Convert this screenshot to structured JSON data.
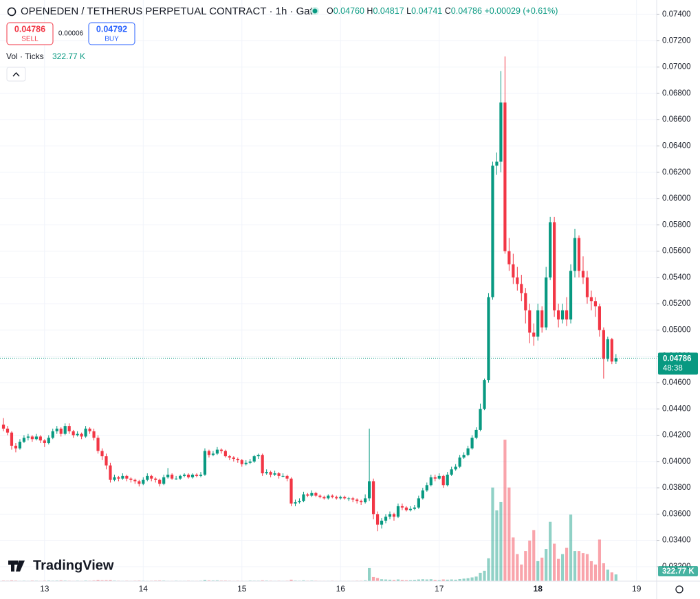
{
  "chart_data": {
    "type": "candlestick",
    "title": "OPENEDEN / TETHERUS PERPETUAL CONTRACT · 1h · Gate",
    "ohlc": [
      {
        "label": "O",
        "value": "0.04760"
      },
      {
        "label": "H",
        "value": "0.04817"
      },
      {
        "label": "L",
        "value": "0.04741"
      },
      {
        "label": "C",
        "value": "0.04786"
      }
    ],
    "change": "+0.00029 (+0.61%)",
    "sell": "0.04786",
    "sell_label": "SELL",
    "spread": "0.00006",
    "buy": "0.04792",
    "buy_label": "BUY",
    "volume_title": "Vol · Ticks",
    "volume_label": "322.77 K",
    "last_price_label": "0.04786",
    "countdown": "48:38",
    "brand": "TradingView",
    "up_color": "#089981",
    "down_color": "#f23645",
    "xlim": [
      -0.84,
      158.9
    ],
    "xticks": [
      {
        "value": 10,
        "label": "13"
      },
      {
        "value": 34,
        "label": "14"
      },
      {
        "value": 58,
        "label": "15"
      },
      {
        "value": 82,
        "label": "16"
      },
      {
        "value": 106,
        "label": "17"
      },
      {
        "value": 130,
        "label": "18"
      },
      {
        "value": 154,
        "label": "19"
      }
    ],
    "ylim": [
      0.0309,
      0.0751
    ],
    "yticks": [
      {
        "value": 0.032,
        "label": "0.03200"
      },
      {
        "value": 0.034,
        "label": "0.03400"
      },
      {
        "value": 0.036,
        "label": "0.03600"
      },
      {
        "value": 0.038,
        "label": "0.03800"
      },
      {
        "value": 0.04,
        "label": "0.04000"
      },
      {
        "value": 0.042,
        "label": "0.04200"
      },
      {
        "value": 0.044,
        "label": "0.04400"
      },
      {
        "value": 0.046,
        "label": "0.04600"
      },
      {
        "value": 0.048,
        "label": "0.04800"
      },
      {
        "value": 0.05,
        "label": "0.05000"
      },
      {
        "value": 0.052,
        "label": "0.05200"
      },
      {
        "value": 0.054,
        "label": "0.05400"
      },
      {
        "value": 0.056,
        "label": "0.05600"
      },
      {
        "value": 0.058,
        "label": "0.05800"
      },
      {
        "value": 0.06,
        "label": "0.06000"
      },
      {
        "value": 0.062,
        "label": "0.06200"
      },
      {
        "value": 0.064,
        "label": "0.06400"
      },
      {
        "value": 0.066,
        "label": "0.06600"
      },
      {
        "value": 0.068,
        "label": "0.06800"
      },
      {
        "value": 0.07,
        "label": "0.07000"
      },
      {
        "value": 0.072,
        "label": "0.07200"
      },
      {
        "value": 0.074,
        "label": "0.07400"
      }
    ],
    "grid": true,
    "volume_lim": [
      0,
      7000
    ],
    "candles": [
      [
        0.0428,
        0.0433,
        0.0423,
        0.0425
      ],
      [
        0.0425,
        0.0427,
        0.042,
        0.0422
      ],
      [
        0.0422,
        0.0423,
        0.0409,
        0.0412
      ],
      [
        0.0412,
        0.0414,
        0.0407,
        0.041
      ],
      [
        0.041,
        0.0417,
        0.0409,
        0.0415
      ],
      [
        0.0415,
        0.042,
        0.0414,
        0.0418
      ],
      [
        0.0418,
        0.0421,
        0.0416,
        0.0419
      ],
      [
        0.0419,
        0.042,
        0.0415,
        0.0417
      ],
      [
        0.0417,
        0.0421,
        0.0416,
        0.0419
      ],
      [
        0.0419,
        0.042,
        0.0414,
        0.0416
      ],
      [
        0.0416,
        0.0417,
        0.0411,
        0.0414
      ],
      [
        0.0414,
        0.042,
        0.0413,
        0.0418
      ],
      [
        0.0418,
        0.0425,
        0.0417,
        0.0423
      ],
      [
        0.0423,
        0.0427,
        0.0421,
        0.0425
      ],
      [
        0.0425,
        0.0426,
        0.0419,
        0.0421
      ],
      [
        0.0421,
        0.0429,
        0.042,
        0.0427
      ],
      [
        0.0427,
        0.0429,
        0.0421,
        0.0423
      ],
      [
        0.0423,
        0.0424,
        0.0418,
        0.042
      ],
      [
        0.042,
        0.0423,
        0.0419,
        0.0421
      ],
      [
        0.0421,
        0.0422,
        0.0417,
        0.0419
      ],
      [
        0.0419,
        0.0427,
        0.0418,
        0.0425
      ],
      [
        0.0425,
        0.0426,
        0.0421,
        0.0423
      ],
      [
        0.0423,
        0.0425,
        0.0416,
        0.0418
      ],
      [
        0.0418,
        0.042,
        0.0406,
        0.0408
      ],
      [
        0.0408,
        0.041,
        0.0401,
        0.0404
      ],
      [
        0.0404,
        0.0406,
        0.0394,
        0.0397
      ],
      [
        0.0397,
        0.0399,
        0.0384,
        0.0386
      ],
      [
        0.0386,
        0.039,
        0.0385,
        0.0388
      ],
      [
        0.0388,
        0.0389,
        0.0385,
        0.0387
      ],
      [
        0.0387,
        0.0391,
        0.0386,
        0.0389
      ],
      [
        0.0389,
        0.039,
        0.0385,
        0.0387
      ],
      [
        0.0387,
        0.0388,
        0.0384,
        0.0386
      ],
      [
        0.0386,
        0.0387,
        0.0383,
        0.0385
      ],
      [
        0.0385,
        0.0386,
        0.0381,
        0.0383
      ],
      [
        0.0383,
        0.0388,
        0.0382,
        0.0386
      ],
      [
        0.0386,
        0.0391,
        0.0385,
        0.0389
      ],
      [
        0.0389,
        0.039,
        0.0385,
        0.0387
      ],
      [
        0.0387,
        0.0388,
        0.0384,
        0.0386
      ],
      [
        0.0386,
        0.0387,
        0.0381,
        0.0383
      ],
      [
        0.0383,
        0.039,
        0.0382,
        0.0388
      ],
      [
        0.0388,
        0.0395,
        0.0387,
        0.039
      ],
      [
        0.039,
        0.0391,
        0.0386,
        0.0387
      ],
      [
        0.0387,
        0.0389,
        0.0386,
        0.0387
      ],
      [
        0.0387,
        0.039,
        0.0386,
        0.0389
      ],
      [
        0.0389,
        0.0391,
        0.0388,
        0.039
      ],
      [
        0.039,
        0.0391,
        0.0387,
        0.0388
      ],
      [
        0.0388,
        0.0391,
        0.0387,
        0.039
      ],
      [
        0.039,
        0.0391,
        0.0388,
        0.0389
      ],
      [
        0.0389,
        0.0392,
        0.0388,
        0.039
      ],
      [
        0.039,
        0.041,
        0.0389,
        0.0408
      ],
      [
        0.0408,
        0.0409,
        0.0403,
        0.0405
      ],
      [
        0.0405,
        0.0408,
        0.0404,
        0.0406
      ],
      [
        0.0406,
        0.0411,
        0.0405,
        0.0409
      ],
      [
        0.0409,
        0.041,
        0.0406,
        0.0408
      ],
      [
        0.0408,
        0.0409,
        0.0403,
        0.0404
      ],
      [
        0.0404,
        0.0405,
        0.0401,
        0.0403
      ],
      [
        0.0403,
        0.0404,
        0.04,
        0.0402
      ],
      [
        0.0402,
        0.0403,
        0.0399,
        0.0401
      ],
      [
        0.0401,
        0.0402,
        0.0396,
        0.0398
      ],
      [
        0.0398,
        0.0401,
        0.0397,
        0.0399
      ],
      [
        0.0399,
        0.0402,
        0.0398,
        0.04
      ],
      [
        0.04,
        0.0405,
        0.0399,
        0.0404
      ],
      [
        0.0404,
        0.0406,
        0.0402,
        0.0405
      ],
      [
        0.0405,
        0.0406,
        0.0389,
        0.0391
      ],
      [
        0.0391,
        0.0394,
        0.039,
        0.0392
      ],
      [
        0.0392,
        0.0393,
        0.0388,
        0.039
      ],
      [
        0.039,
        0.0393,
        0.0389,
        0.0391
      ],
      [
        0.0391,
        0.0392,
        0.0387,
        0.0389
      ],
      [
        0.0389,
        0.0391,
        0.0388,
        0.0389
      ],
      [
        0.0389,
        0.039,
        0.0385,
        0.0387
      ],
      [
        0.0387,
        0.0388,
        0.0366,
        0.0368
      ],
      [
        0.0368,
        0.0371,
        0.0366,
        0.0369
      ],
      [
        0.0369,
        0.0372,
        0.0368,
        0.037
      ],
      [
        0.037,
        0.0377,
        0.0369,
        0.0375
      ],
      [
        0.0375,
        0.0376,
        0.0373,
        0.0374
      ],
      [
        0.0374,
        0.0378,
        0.0373,
        0.0376
      ],
      [
        0.0376,
        0.0377,
        0.0373,
        0.0374
      ],
      [
        0.0374,
        0.0375,
        0.0372,
        0.0373
      ],
      [
        0.0373,
        0.0374,
        0.0371,
        0.0372
      ],
      [
        0.0372,
        0.0375,
        0.0371,
        0.0374
      ],
      [
        0.0374,
        0.0375,
        0.0372,
        0.0373
      ],
      [
        0.0373,
        0.0374,
        0.0371,
        0.0372
      ],
      [
        0.0372,
        0.0374,
        0.0371,
        0.0373
      ],
      [
        0.0373,
        0.0374,
        0.0371,
        0.0372
      ],
      [
        0.0372,
        0.0373,
        0.037,
        0.0372
      ],
      [
        0.0372,
        0.0373,
        0.0369,
        0.0371
      ],
      [
        0.0371,
        0.0372,
        0.0368,
        0.037
      ],
      [
        0.037,
        0.0371,
        0.0367,
        0.0369
      ],
      [
        0.0369,
        0.0375,
        0.0368,
        0.0372
      ],
      [
        0.0372,
        0.0425,
        0.037,
        0.0385
      ],
      [
        0.0385,
        0.0387,
        0.0356,
        0.036
      ],
      [
        0.036,
        0.0362,
        0.0347,
        0.0352
      ],
      [
        0.0352,
        0.0357,
        0.0349,
        0.0355
      ],
      [
        0.0355,
        0.036,
        0.0353,
        0.0358
      ],
      [
        0.0358,
        0.0362,
        0.0356,
        0.036
      ],
      [
        0.036,
        0.0361,
        0.0355,
        0.0358
      ],
      [
        0.0358,
        0.0368,
        0.0357,
        0.0366
      ],
      [
        0.0366,
        0.0368,
        0.0363,
        0.0365
      ],
      [
        0.0365,
        0.0366,
        0.0362,
        0.0363
      ],
      [
        0.0363,
        0.0366,
        0.0362,
        0.0364
      ],
      [
        0.0364,
        0.0367,
        0.0363,
        0.0365
      ],
      [
        0.0365,
        0.0374,
        0.0364,
        0.0372
      ],
      [
        0.0372,
        0.038,
        0.0371,
        0.0378
      ],
      [
        0.0378,
        0.0384,
        0.0377,
        0.0382
      ],
      [
        0.0382,
        0.039,
        0.0381,
        0.0388
      ],
      [
        0.0388,
        0.039,
        0.0385,
        0.0387
      ],
      [
        0.0387,
        0.0391,
        0.0386,
        0.0389
      ],
      [
        0.0389,
        0.039,
        0.038,
        0.0382
      ],
      [
        0.0382,
        0.0392,
        0.0381,
        0.039
      ],
      [
        0.039,
        0.0396,
        0.0389,
        0.0394
      ],
      [
        0.0394,
        0.0398,
        0.0393,
        0.0396
      ],
      [
        0.0396,
        0.0405,
        0.0395,
        0.0403
      ],
      [
        0.0403,
        0.0407,
        0.0402,
        0.0405
      ],
      [
        0.0405,
        0.0412,
        0.0404,
        0.041
      ],
      [
        0.041,
        0.042,
        0.0409,
        0.0418
      ],
      [
        0.0418,
        0.0426,
        0.0417,
        0.0424
      ],
      [
        0.0424,
        0.0444,
        0.0423,
        0.044
      ],
      [
        0.044,
        0.0463,
        0.0439,
        0.0462
      ],
      [
        0.0462,
        0.0528,
        0.046,
        0.0525
      ],
      [
        0.0525,
        0.0628,
        0.0523,
        0.0625
      ],
      [
        0.0625,
        0.0635,
        0.0618,
        0.0628
      ],
      [
        0.0628,
        0.0697,
        0.062,
        0.0673
      ],
      [
        0.0673,
        0.0708,
        0.0558,
        0.056
      ],
      [
        0.056,
        0.057,
        0.0545,
        0.055
      ],
      [
        0.055,
        0.0558,
        0.0535,
        0.054
      ],
      [
        0.054,
        0.0548,
        0.053,
        0.0535
      ],
      [
        0.0535,
        0.0542,
        0.0522,
        0.0528
      ],
      [
        0.0528,
        0.0532,
        0.0505,
        0.0515
      ],
      [
        0.0515,
        0.052,
        0.049,
        0.0498
      ],
      [
        0.0498,
        0.0505,
        0.0488,
        0.0495
      ],
      [
        0.0495,
        0.052,
        0.0492,
        0.0515
      ],
      [
        0.0515,
        0.0518,
        0.0498,
        0.0502
      ],
      [
        0.0502,
        0.0548,
        0.05,
        0.054
      ],
      [
        0.054,
        0.0586,
        0.0538,
        0.0582
      ],
      [
        0.0582,
        0.0586,
        0.051,
        0.0515
      ],
      [
        0.0515,
        0.052,
        0.0502,
        0.0508
      ],
      [
        0.0508,
        0.052,
        0.0505,
        0.0515
      ],
      [
        0.0515,
        0.0525,
        0.0503,
        0.0508
      ],
      [
        0.0508,
        0.055,
        0.0505,
        0.0545
      ],
      [
        0.0545,
        0.0577,
        0.054,
        0.057
      ],
      [
        0.057,
        0.0572,
        0.054,
        0.0545
      ],
      [
        0.0545,
        0.0556,
        0.0535,
        0.054
      ],
      [
        0.054,
        0.0545,
        0.052,
        0.0525
      ],
      [
        0.0525,
        0.053,
        0.0515,
        0.0522
      ],
      [
        0.0522,
        0.0525,
        0.051,
        0.0518
      ],
      [
        0.0518,
        0.052,
        0.0495,
        0.05
      ],
      [
        0.05,
        0.0502,
        0.0463,
        0.0478
      ],
      [
        0.0478,
        0.0495,
        0.0476,
        0.0493
      ],
      [
        0.0493,
        0.0494,
        0.0474,
        0.0476
      ],
      [
        0.0476,
        0.04817,
        0.04741,
        0.04786
      ]
    ],
    "volume": [
      30,
      25,
      40,
      30,
      20,
      25,
      20,
      30,
      25,
      20,
      30,
      35,
      25,
      30,
      40,
      30,
      25,
      20,
      25,
      20,
      30,
      25,
      35,
      60,
      45,
      50,
      55,
      30,
      25,
      20,
      25,
      20,
      25,
      30,
      25,
      20,
      25,
      30,
      35,
      30,
      20,
      20,
      25,
      20,
      20,
      25,
      20,
      20,
      25,
      60,
      40,
      35,
      40,
      30,
      30,
      25,
      20,
      25,
      20,
      20,
      30,
      25,
      25,
      40,
      30,
      25,
      20,
      25,
      20,
      25,
      70,
      30,
      25,
      40,
      25,
      30,
      25,
      20,
      20,
      20,
      25,
      20,
      20,
      20,
      20,
      20,
      25,
      25,
      40,
      630,
      200,
      150,
      90,
      80,
      70,
      60,
      80,
      60,
      50,
      50,
      60,
      80,
      90,
      80,
      90,
      60,
      50,
      80,
      70,
      80,
      70,
      100,
      120,
      140,
      180,
      220,
      400,
      500,
      1100,
      4500,
      3400,
      3800,
      6800,
      4500,
      2100,
      1300,
      800,
      1450,
      1950,
      2450,
      960,
      1130,
      1550,
      2850,
      1800,
      1070,
      1300,
      1600,
      3200,
      1450,
      1450,
      1350,
      1300,
      960,
      800,
      2000,
      860,
      550,
      420,
      322.77
    ]
  }
}
